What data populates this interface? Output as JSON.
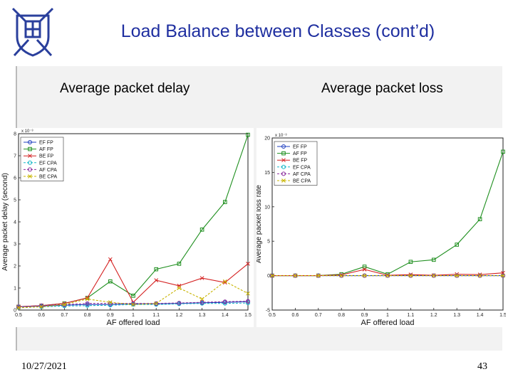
{
  "slide": {
    "title": "Load Balance between Classes (cont’d)",
    "date": "10/27/2021",
    "page_number": "43"
  },
  "chart_data": [
    {
      "type": "line",
      "subtitle": "Average packet delay",
      "xlabel": "AF offered load",
      "ylabel": "Average packet delay (second)",
      "exponent": "x 10⁻³",
      "x": [
        0.5,
        0.6,
        0.7,
        0.8,
        0.9,
        1,
        1.1,
        1.2,
        1.3,
        1.4,
        1.5
      ],
      "xticks": [
        "0.5",
        "0.6",
        "0.7",
        "0.8",
        "0.9",
        "1",
        "1.1",
        "1.2",
        "1.3",
        "1.4",
        "1.5"
      ],
      "yticks": [
        "0",
        "1",
        "2",
        "3",
        "4",
        "5",
        "6",
        "7",
        "8"
      ],
      "xlim": [
        0.5,
        1.5
      ],
      "ylim": [
        0,
        8
      ],
      "legend_position": "top-left",
      "series": [
        {
          "name": "EF FP",
          "color": "#1f3fbf",
          "marker": "circle",
          "dash": "solid",
          "values": [
            0.15,
            0.18,
            0.22,
            0.25,
            0.25,
            0.28,
            0.28,
            0.3,
            0.33,
            0.35,
            0.38
          ]
        },
        {
          "name": "AF FP",
          "color": "#1f8f1f",
          "marker": "square",
          "dash": "solid",
          "values": [
            0.15,
            0.2,
            0.3,
            0.55,
            1.3,
            0.65,
            1.85,
            2.1,
            3.65,
            4.9,
            7.95
          ]
        },
        {
          "name": "BE FP",
          "color": "#d42020",
          "marker": "x",
          "dash": "solid",
          "values": [
            0.15,
            0.2,
            0.3,
            0.55,
            2.3,
            0.35,
            1.35,
            1.1,
            1.45,
            1.25,
            2.1
          ]
        },
        {
          "name": "EF CPA",
          "color": "#18b8c8",
          "marker": "circle",
          "dash": "dashed",
          "values": [
            0.12,
            0.15,
            0.18,
            0.2,
            0.22,
            0.25,
            0.25,
            0.28,
            0.3,
            0.3,
            0.32
          ]
        },
        {
          "name": "AF CPA",
          "color": "#8a2b9c",
          "marker": "circle",
          "dash": "dashed",
          "values": [
            0.15,
            0.2,
            0.25,
            0.3,
            0.3,
            0.3,
            0.3,
            0.32,
            0.35,
            0.38,
            0.4
          ]
        },
        {
          "name": "BE CPA",
          "color": "#c8b400",
          "marker": "x",
          "dash": "dashed",
          "values": [
            0.1,
            0.15,
            0.25,
            0.5,
            0.35,
            0.25,
            0.3,
            1.0,
            0.5,
            1.3,
            0.75
          ]
        }
      ]
    },
    {
      "type": "line",
      "subtitle": "Average packet loss",
      "xlabel": "AF offered load",
      "ylabel": "Average packet loss rate",
      "exponent": "x 10⁻³",
      "x": [
        0.5,
        0.6,
        0.7,
        0.8,
        0.9,
        1,
        1.1,
        1.2,
        1.3,
        1.4,
        1.5
      ],
      "xticks": [
        "0.5",
        "0.6",
        "0.7",
        "0.8",
        "0.9",
        "1",
        "1.1",
        "1.2",
        "1.3",
        "1.4",
        "1.5"
      ],
      "yticks": [
        "-5",
        "0",
        "5",
        "10",
        "15",
        "20"
      ],
      "xlim": [
        0.5,
        1.5
      ],
      "ylim": [
        -5,
        20
      ],
      "legend_position": "top-left",
      "series": [
        {
          "name": "EF FP",
          "color": "#1f3fbf",
          "marker": "circle",
          "dash": "solid",
          "values": [
            0,
            0,
            0,
            0,
            0,
            0,
            0,
            0,
            0,
            0,
            0
          ]
        },
        {
          "name": "AF FP",
          "color": "#1f8f1f",
          "marker": "square",
          "dash": "solid",
          "values": [
            0,
            0,
            0,
            0.2,
            1.3,
            0.2,
            2.0,
            2.3,
            4.5,
            8.2,
            18.0
          ]
        },
        {
          "name": "BE FP",
          "color": "#d42020",
          "marker": "x",
          "dash": "solid",
          "values": [
            0,
            0,
            0,
            0.1,
            0.9,
            0.05,
            0.15,
            0.05,
            0.2,
            0.15,
            0.4
          ]
        },
        {
          "name": "EF CPA",
          "color": "#18b8c8",
          "marker": "circle",
          "dash": "dashed",
          "values": [
            0,
            0,
            0,
            0,
            0,
            0,
            0,
            0,
            0,
            0,
            0
          ]
        },
        {
          "name": "AF CPA",
          "color": "#8a2b9c",
          "marker": "circle",
          "dash": "dashed",
          "values": [
            0,
            0,
            0,
            0,
            0,
            0,
            0,
            0,
            0,
            0,
            0
          ]
        },
        {
          "name": "BE CPA",
          "color": "#c8b400",
          "marker": "x",
          "dash": "dashed",
          "values": [
            0,
            0,
            0,
            0,
            0,
            0,
            0,
            0,
            0,
            0,
            0
          ]
        }
      ]
    }
  ]
}
